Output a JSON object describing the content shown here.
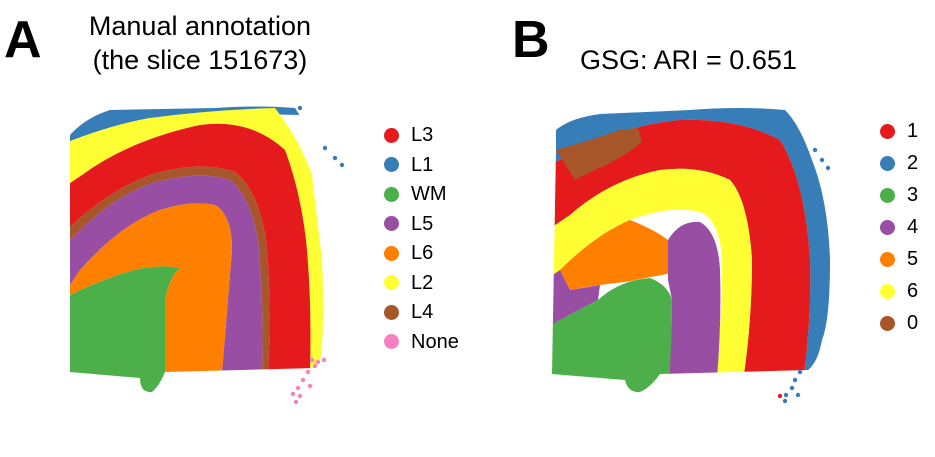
{
  "panel_a": {
    "letter": "A",
    "title_line1": "Manual annotation",
    "title_line2": "(the slice 151673)",
    "legend": [
      {
        "label": "L3",
        "color": "#e41a1c"
      },
      {
        "label": "L1",
        "color": "#377eb8"
      },
      {
        "label": "WM",
        "color": "#4daf4a"
      },
      {
        "label": "L5",
        "color": "#984ea3"
      },
      {
        "label": "L6",
        "color": "#ff7f00"
      },
      {
        "label": "L2",
        "color": "#ffff33"
      },
      {
        "label": "L4",
        "color": "#a65628"
      },
      {
        "label": "None",
        "color": "#f781bf"
      }
    ]
  },
  "panel_b": {
    "letter": "B",
    "title": "GSG: ARI =  0.651",
    "legend": [
      {
        "label": "1",
        "color": "#e41a1c"
      },
      {
        "label": "2",
        "color": "#377eb8"
      },
      {
        "label": "3",
        "color": "#4daf4a"
      },
      {
        "label": "4",
        "color": "#984ea3"
      },
      {
        "label": "5",
        "color": "#ff7f00"
      },
      {
        "label": "6",
        "color": "#ffff33"
      },
      {
        "label": "0",
        "color": "#a65628"
      }
    ]
  }
}
